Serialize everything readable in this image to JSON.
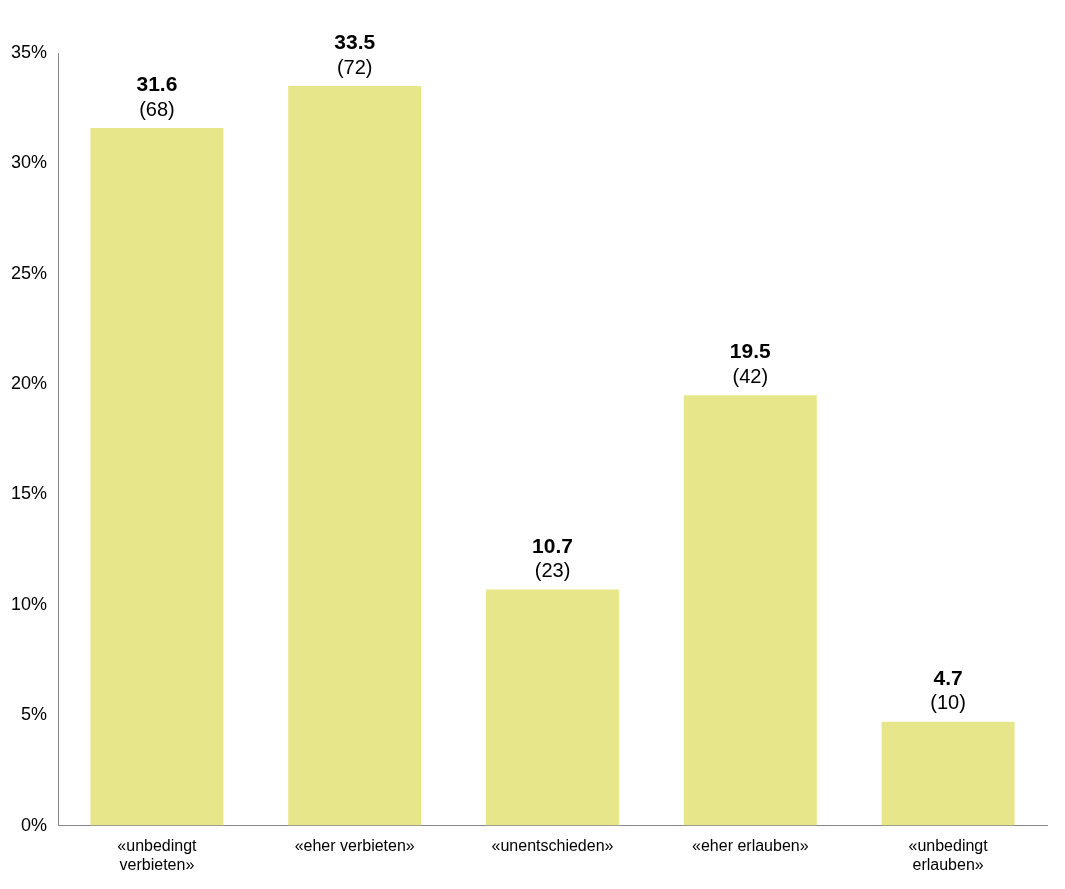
{
  "chart_data": {
    "type": "bar",
    "categories": [
      "«unbedingt verbieten»",
      "«eher verbieten»",
      "«unentschieden»",
      "«eher erlauben»",
      "«unbedingt erlauben»"
    ],
    "values": [
      31.6,
      33.5,
      10.7,
      19.5,
      4.7
    ],
    "color": "#e8e68a",
    "ylim": [
      0,
      35
    ],
    "yticks": [
      {
        "value": 0,
        "label": "0%"
      },
      {
        "value": 5,
        "label": "5%"
      },
      {
        "value": 10,
        "label": "10%"
      },
      {
        "value": 15,
        "label": "15%"
      },
      {
        "value": 20,
        "label": "20%"
      },
      {
        "value": 25,
        "label": "25%"
      },
      {
        "value": 30,
        "label": "30%"
      },
      {
        "value": 35,
        "label": "35%"
      }
    ],
    "grid": false,
    "legend": false,
    "data_labels": true,
    "annotations": [
      {
        "text": "(68)",
        "x": "«unbedingt verbieten»",
        "y": 31.6
      },
      {
        "text": "(72)",
        "x": "«eher verbieten»",
        "y": 33.5
      },
      {
        "text": "(23)",
        "x": "«unentschieden»",
        "y": 10.7
      },
      {
        "text": "(42)",
        "x": "«eher erlauben»",
        "y": 19.5
      },
      {
        "text": "(10)",
        "x": "«unbedingt erlauben»",
        "y": 4.7
      }
    ]
  }
}
